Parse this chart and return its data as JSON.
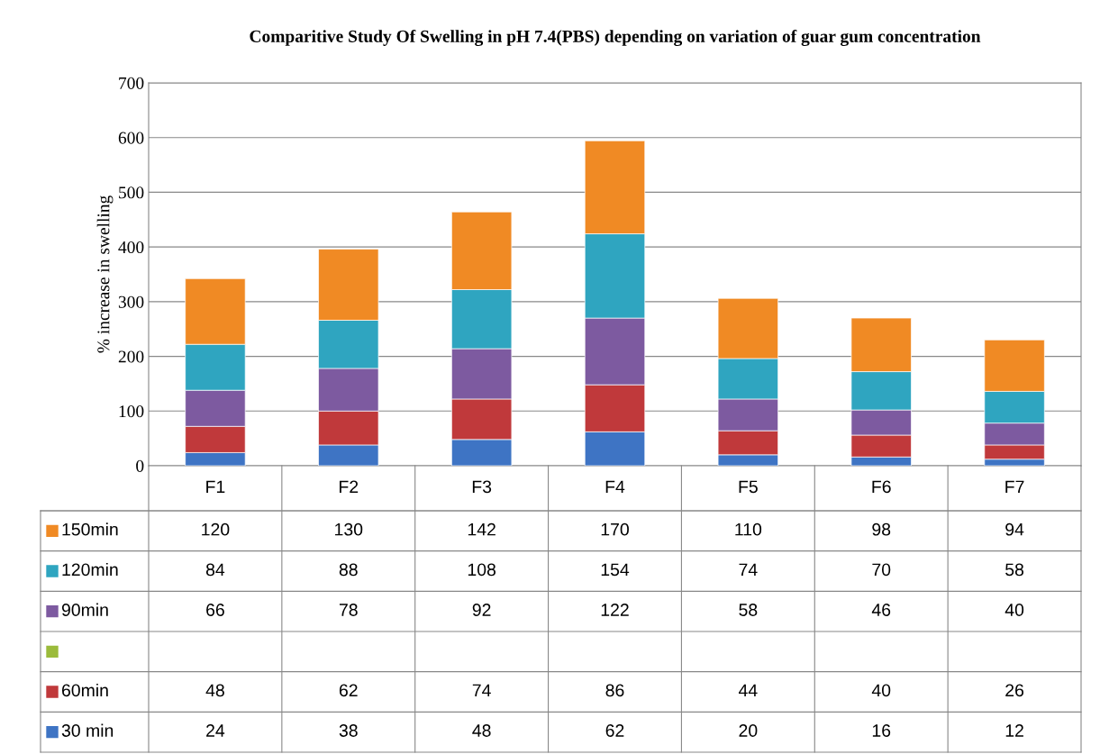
{
  "chart_data": {
    "type": "bar",
    "title": "Comparitive Study Of Swelling in pH 7.4(PBS) depending on variation of guar gum concentration",
    "ylabel": "% increase in swelling",
    "categories": [
      "F1",
      "F2",
      "F3",
      "F4",
      "F5",
      "F6",
      "F7"
    ],
    "stacked": true,
    "data_labels": true,
    "grid": "y",
    "legend": "bottom left",
    "ylim": [
      0,
      700
    ],
    "yticks": [
      0,
      100,
      200,
      300,
      400,
      500,
      600,
      700
    ],
    "series": [
      {
        "name": "30 min",
        "color": "#3e74c4",
        "values": [
          24,
          38,
          48,
          62,
          20,
          16,
          12
        ]
      },
      {
        "name": "60min",
        "color": "#c0393b",
        "values": [
          48,
          62,
          74,
          86,
          44,
          40,
          26
        ]
      },
      {
        "color": "#9bbb3b",
        "values": [
          null,
          null,
          null,
          null,
          null,
          null,
          null
        ]
      },
      {
        "name": "90min",
        "color": "#7d5aa0",
        "values": [
          66,
          78,
          92,
          122,
          58,
          46,
          40
        ]
      },
      {
        "name": "120min",
        "color": "#2fa5c0",
        "values": [
          84,
          88,
          108,
          154,
          74,
          70,
          58
        ]
      },
      {
        "name": "150min",
        "color": "#f08a24",
        "values": [
          120,
          130,
          142,
          170,
          110,
          98,
          94
        ]
      }
    ]
  }
}
